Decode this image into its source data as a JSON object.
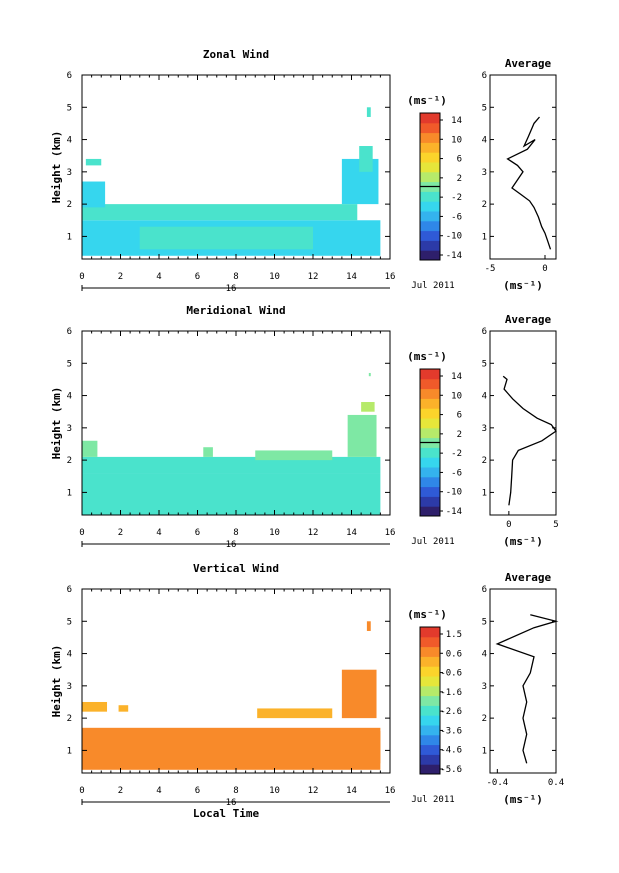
{
  "chart_data": [
    {
      "type": "heatmap",
      "title": "Zonal Wind",
      "xlabel": "",
      "ylabel": "Height (km)",
      "xlim": [
        0,
        16
      ],
      "ylim": [
        0.3,
        6
      ],
      "xticks": [
        "0",
        "2",
        "4",
        "6",
        "8",
        "10",
        "12",
        "14",
        "16"
      ],
      "yticks": [
        "1",
        "2",
        "3",
        "4",
        "5",
        "6"
      ],
      "date_label": "Jul 2011",
      "day_label": "16",
      "colorbar": {
        "unit": "(ms⁻¹)",
        "ticks": [
          "14",
          "10",
          "6",
          "2",
          "-2",
          "-6",
          "-10",
          "-14"
        ],
        "vmin": -16,
        "vmax": 16,
        "midline": 0
      },
      "field": {
        "cells": [
          {
            "x0": 0.0,
            "x1": 15.5,
            "y0": 0.4,
            "y1": 1.5,
            "v": -3.5
          },
          {
            "x0": 0.0,
            "x1": 14.3,
            "y0": 1.5,
            "y1": 2.0,
            "v": -2.5
          },
          {
            "x0": 0.0,
            "x1": 1.2,
            "y0": 1.9,
            "y1": 2.7,
            "v": -5
          },
          {
            "x0": 0.2,
            "x1": 1.0,
            "y0": 3.2,
            "y1": 3.4,
            "v": -3
          },
          {
            "x0": 13.5,
            "x1": 15.4,
            "y0": 2.0,
            "y1": 3.4,
            "v": -3.5
          },
          {
            "x0": 14.4,
            "x1": 15.1,
            "y0": 3.0,
            "y1": 3.8,
            "v": -3
          },
          {
            "x0": 14.8,
            "x1": 15.0,
            "y0": 4.7,
            "y1": 5.0,
            "v": -3
          },
          {
            "x0": 3.0,
            "x1": 12.0,
            "y0": 0.6,
            "y1": 1.3,
            "v": -1.5
          }
        ]
      },
      "profile": {
        "title": "Average",
        "xlim": [
          -5,
          1
        ],
        "xticks": [
          "-5",
          "0"
        ],
        "xlabel": "(ms⁻¹)",
        "ylim": [
          0.3,
          6
        ],
        "yticks": [
          "1",
          "2",
          "3",
          "4",
          "5",
          "6"
        ],
        "points": [
          [
            0.5,
            0.6
          ],
          [
            0.2,
            0.9
          ],
          [
            0.0,
            1.1
          ],
          [
            -0.3,
            1.3
          ],
          [
            -0.6,
            1.6
          ],
          [
            -1.0,
            1.9
          ],
          [
            -1.4,
            2.1
          ],
          [
            -2.2,
            2.3
          ],
          [
            -3.0,
            2.5
          ],
          [
            -2.6,
            2.7
          ],
          [
            -2.0,
            3.0
          ],
          [
            -2.5,
            3.2
          ],
          [
            -3.4,
            3.4
          ],
          [
            -1.6,
            3.7
          ],
          [
            -0.9,
            4.0
          ],
          [
            -1.9,
            3.8
          ],
          [
            -1.5,
            4.1
          ],
          [
            -1.0,
            4.5
          ],
          [
            -0.5,
            4.7
          ]
        ]
      }
    },
    {
      "type": "heatmap",
      "title": "Meridional Wind",
      "xlabel": "",
      "ylabel": "Height (km)",
      "xlim": [
        0,
        16
      ],
      "ylim": [
        0.3,
        6
      ],
      "xticks": [
        "0",
        "2",
        "4",
        "6",
        "8",
        "10",
        "12",
        "14",
        "16"
      ],
      "yticks": [
        "1",
        "2",
        "3",
        "4",
        "5",
        "6"
      ],
      "date_label": "Jul 2011",
      "day_label": "16",
      "colorbar": {
        "unit": "(ms⁻¹)",
        "ticks": [
          "14",
          "10",
          "6",
          "2",
          "-2",
          "-6",
          "-10",
          "-14"
        ],
        "vmin": -16,
        "vmax": 16,
        "midline": 0
      },
      "field": {
        "cells": [
          {
            "x0": 0.0,
            "x1": 15.5,
            "y0": 0.3,
            "y1": 1.6,
            "v": -2
          },
          {
            "x0": 0.0,
            "x1": 15.5,
            "y0": 1.6,
            "y1": 2.1,
            "v": -1.5
          },
          {
            "x0": 0.0,
            "x1": 0.8,
            "y0": 2.1,
            "y1": 2.6,
            "v": -0.5
          },
          {
            "x0": 6.3,
            "x1": 6.8,
            "y0": 2.1,
            "y1": 2.4,
            "v": -1
          },
          {
            "x0": 9.0,
            "x1": 13.0,
            "y0": 2.0,
            "y1": 2.3,
            "v": -0.8
          },
          {
            "x0": 13.8,
            "x1": 15.3,
            "y0": 2.1,
            "y1": 3.4,
            "v": 0.5
          },
          {
            "x0": 14.5,
            "x1": 15.2,
            "y0": 3.5,
            "y1": 3.8,
            "v": 1.5
          },
          {
            "x0": 14.9,
            "x1": 15.0,
            "y0": 4.6,
            "y1": 4.7,
            "v": -1
          }
        ]
      },
      "profile": {
        "title": "Average",
        "xlim": [
          -2,
          5
        ],
        "xticks": [
          "0",
          "5"
        ],
        "xlabel": "(ms⁻¹)",
        "ylim": [
          0.3,
          6
        ],
        "yticks": [
          "1",
          "2",
          "3",
          "4",
          "5",
          "6"
        ],
        "points": [
          [
            0.0,
            0.6
          ],
          [
            0.2,
            1.0
          ],
          [
            0.3,
            1.5
          ],
          [
            0.4,
            2.0
          ],
          [
            1.0,
            2.3
          ],
          [
            3.5,
            2.6
          ],
          [
            5.0,
            2.9
          ],
          [
            4.5,
            3.1
          ],
          [
            3.0,
            3.3
          ],
          [
            1.5,
            3.6
          ],
          [
            0.4,
            3.9
          ],
          [
            -0.5,
            4.2
          ],
          [
            -0.2,
            4.5
          ],
          [
            -0.6,
            4.6
          ]
        ]
      }
    },
    {
      "type": "heatmap",
      "title": "Vertical Wind",
      "xlabel": "Local Time",
      "ylabel": "Height (km)",
      "xlim": [
        0,
        16
      ],
      "ylim": [
        0.3,
        6
      ],
      "xticks": [
        "0",
        "2",
        "4",
        "6",
        "8",
        "10",
        "12",
        "14",
        "16"
      ],
      "yticks": [
        "1",
        "2",
        "3",
        "4",
        "5",
        "6"
      ],
      "date_label": "Jul 2011",
      "day_label": "16",
      "colorbar": {
        "unit": "(ms⁻¹)",
        "ticks": [
          "1.5",
          "0.6",
          "-0.6",
          "-1.6",
          "-2.6",
          "-3.6",
          "-4.6",
          "-5.6"
        ],
        "vmin": -6,
        "vmax": 2,
        "midline": null
      },
      "field": {
        "cells": [
          {
            "x0": 0.0,
            "x1": 15.5,
            "y0": 0.4,
            "y1": 1.7,
            "v": 0.4
          },
          {
            "x0": 0.0,
            "x1": 4.0,
            "y0": 0.6,
            "y1": 1.2,
            "v": 0.9
          },
          {
            "x0": 10.0,
            "x1": 15.5,
            "y0": 0.6,
            "y1": 1.6,
            "v": 0.8
          },
          {
            "x0": 0.0,
            "x1": 1.3,
            "y0": 2.2,
            "y1": 2.5,
            "v": 0.2
          },
          {
            "x0": 1.9,
            "x1": 2.4,
            "y0": 2.2,
            "y1": 2.4,
            "v": 0.2
          },
          {
            "x0": 9.1,
            "x1": 13.0,
            "y0": 2.0,
            "y1": 2.3,
            "v": 0.3
          },
          {
            "x0": 13.5,
            "x1": 15.3,
            "y0": 2.0,
            "y1": 3.5,
            "v": 0.4
          },
          {
            "x0": 14.8,
            "x1": 15.0,
            "y0": 4.7,
            "y1": 5.0,
            "v": 0.6
          }
        ]
      },
      "profile": {
        "title": "Average",
        "xlim": [
          -0.5,
          0.4
        ],
        "xticks": [
          "-0.4",
          "0.4"
        ],
        "xlabel": "(ms⁻¹)",
        "ylim": [
          0.3,
          6
        ],
        "yticks": [
          "1",
          "2",
          "3",
          "4",
          "5",
          "6"
        ],
        "points": [
          [
            0.0,
            0.6
          ],
          [
            -0.05,
            1.0
          ],
          [
            0.0,
            1.5
          ],
          [
            -0.05,
            2.0
          ],
          [
            0.0,
            2.5
          ],
          [
            -0.05,
            3.0
          ],
          [
            0.05,
            3.4
          ],
          [
            0.1,
            3.9
          ],
          [
            -0.4,
            4.3
          ],
          [
            0.1,
            4.8
          ],
          [
            0.4,
            5.0
          ],
          [
            0.05,
            5.2
          ]
        ]
      }
    }
  ]
}
